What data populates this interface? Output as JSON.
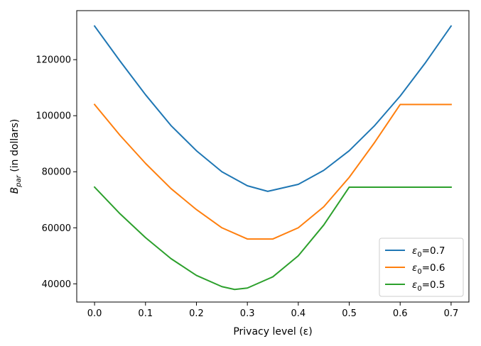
{
  "chart_data": {
    "type": "line",
    "xlabel": "Privacy level (ε)",
    "ylabel_main": "B",
    "ylabel_sub": "par",
    "ylabel_rest": " (in dollars)",
    "xlim": [
      -0.035,
      0.735
    ],
    "ylim": [
      33500,
      137500
    ],
    "xticks": [
      0.0,
      0.1,
      0.2,
      0.3,
      0.4,
      0.5,
      0.6,
      0.7
    ],
    "xtick_labels": [
      "0.0",
      "0.1",
      "0.2",
      "0.3",
      "0.4",
      "0.5",
      "0.6",
      "0.7"
    ],
    "yticks": [
      40000,
      60000,
      80000,
      100000,
      120000
    ],
    "ytick_labels": [
      "40000",
      "60000",
      "80000",
      "100000",
      "120000"
    ],
    "grid": false,
    "legend_position": "lower-right",
    "series": [
      {
        "name": "ε0=0.7",
        "legend_symbol": "ε",
        "legend_sub": "0",
        "legend_value": "=0.7",
        "color": "#1f77b4",
        "x": [
          0.0,
          0.05,
          0.1,
          0.15,
          0.2,
          0.25,
          0.3,
          0.34,
          0.4,
          0.45,
          0.5,
          0.55,
          0.6,
          0.65,
          0.7
        ],
        "y": [
          132000,
          119500,
          107500,
          96500,
          87500,
          80000,
          75000,
          73000,
          75500,
          80500,
          87500,
          96500,
          107000,
          119000,
          132000
        ]
      },
      {
        "name": "ε0=0.6",
        "legend_symbol": "ε",
        "legend_sub": "0",
        "legend_value": "=0.6",
        "color": "#ff7f0e",
        "x": [
          0.0,
          0.05,
          0.1,
          0.15,
          0.2,
          0.25,
          0.3,
          0.35,
          0.4,
          0.45,
          0.5,
          0.55,
          0.6,
          0.65,
          0.7
        ],
        "y": [
          104000,
          93000,
          83000,
          74000,
          66500,
          60000,
          56000,
          56000,
          60000,
          67500,
          78000,
          90500,
          104000,
          104000,
          104000
        ]
      },
      {
        "name": "ε0=0.5",
        "legend_symbol": "ε",
        "legend_sub": "0",
        "legend_value": "=0.5",
        "color": "#2ca02c",
        "x": [
          0.0,
          0.05,
          0.1,
          0.15,
          0.2,
          0.25,
          0.275,
          0.3,
          0.35,
          0.4,
          0.45,
          0.5,
          0.55,
          0.6,
          0.65,
          0.7
        ],
        "y": [
          74500,
          65000,
          56500,
          49000,
          43000,
          39000,
          38000,
          38500,
          42500,
          50000,
          61000,
          74500,
          74500,
          74500,
          74500,
          74500
        ]
      }
    ]
  }
}
